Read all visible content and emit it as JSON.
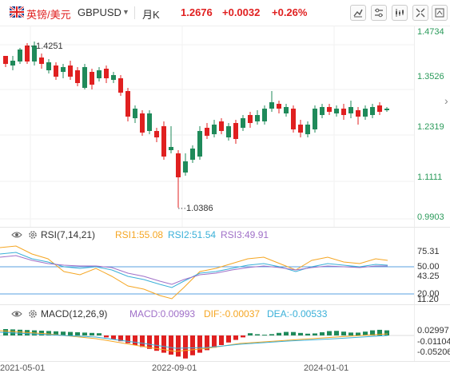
{
  "header": {
    "pair_cn": "英镑/美元",
    "pair_code": "GBPUSD",
    "period": "月K",
    "price": "1.2676",
    "change": "+0.0032",
    "change_pct": "+0.26%",
    "tools": [
      "line-tool-icon",
      "settings-tool-icon",
      "indicator-tool-icon",
      "expand-icon",
      "more-icon"
    ]
  },
  "main_axis": [
    "1.4734",
    "1.3526",
    "1.2319",
    "1.1111",
    "0.9903"
  ],
  "annotations": {
    "high": "1.4251",
    "low": "1.0386"
  },
  "rsi": {
    "name": "RSI(7,14,21)",
    "rsi1": "RSI1:55.08",
    "rsi2": "RSI2:51.54",
    "rsi3": "RSI3:49.91",
    "axis": [
      "75.31",
      "50.00",
      "43.25",
      "20.00",
      "11.20"
    ],
    "colors": {
      "rsi1": "#f5a623",
      "rsi2": "#3ab0d8",
      "rsi3": "#a070c8"
    }
  },
  "macd": {
    "name": "MACD(12,26,9)",
    "macd": "MACD:0.00993",
    "dif": "DIF:-0.00037",
    "dea": "DEA:-0.00533",
    "axis": [
      "0.02997",
      "-0.01104",
      "-0.05206"
    ]
  },
  "x_axis": [
    "2021-05-01",
    "2022-09-01",
    "2024-01-01"
  ],
  "colors": {
    "up": "#e02020",
    "down": "#1f8a5a",
    "accent": "#e02020"
  }
}
